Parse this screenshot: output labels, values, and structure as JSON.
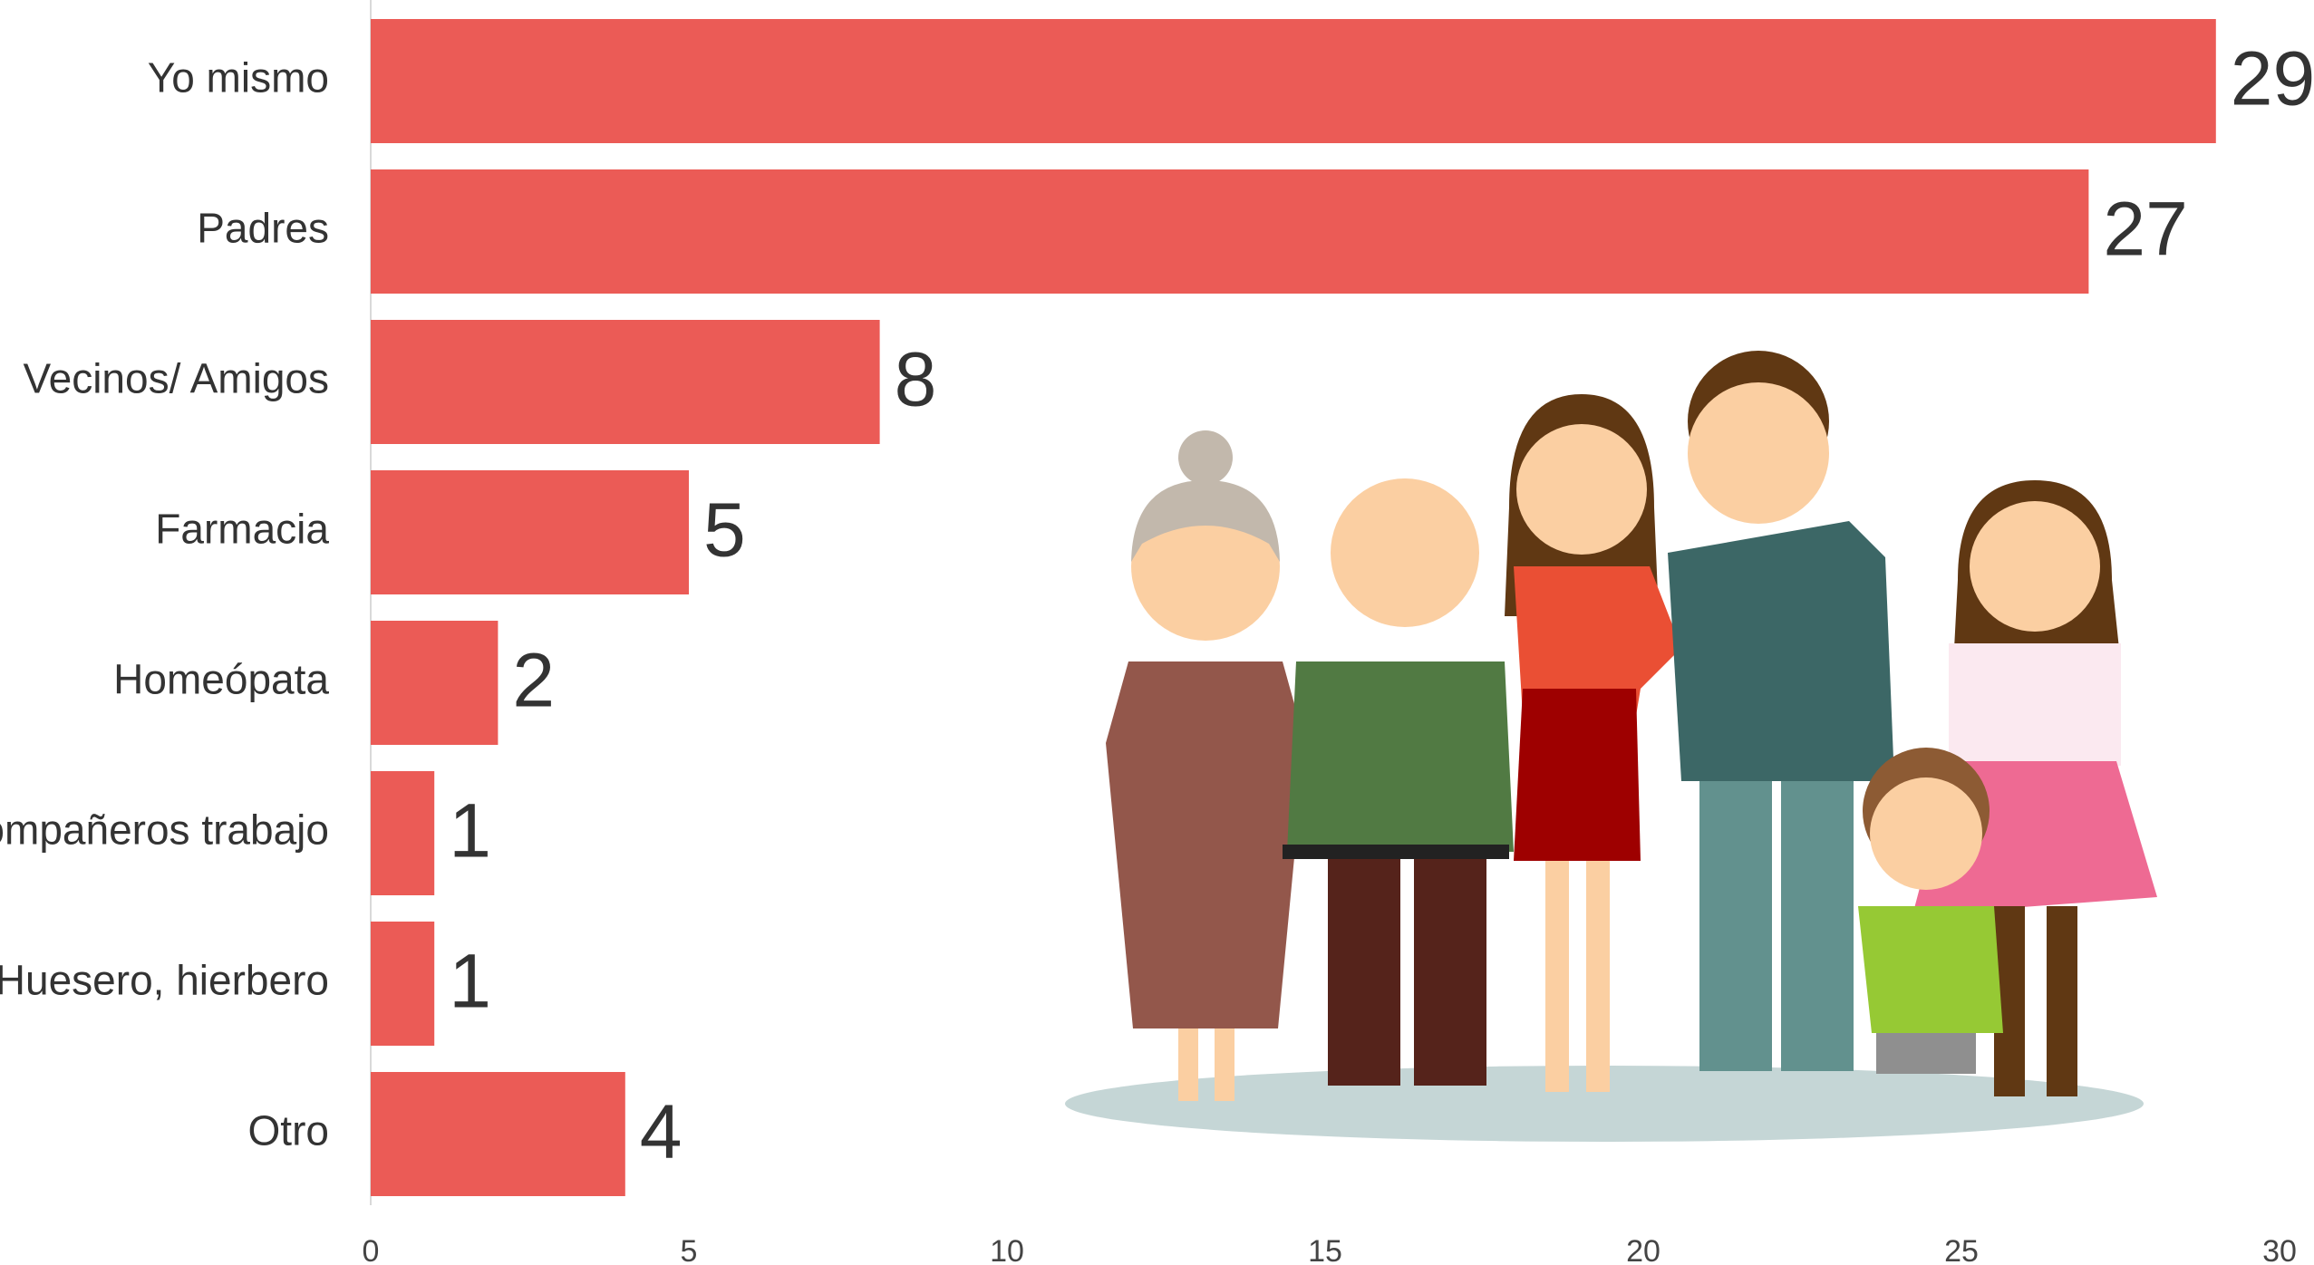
{
  "chart_data": {
    "type": "barh",
    "categories": [
      "Yo mismo",
      "Padres",
      "Vecinos/ Amigos",
      "Farmacia",
      "Homeópata",
      "Compañeros trabajo",
      "Huesero, hierbero",
      "Otro"
    ],
    "values": [
      29,
      27,
      8,
      5,
      2,
      1,
      1,
      4
    ],
    "color": "#eb5b56",
    "xlim": [
      0,
      30
    ],
    "xticks": [
      0,
      5,
      10,
      15,
      20,
      25,
      30
    ],
    "grid": false
  }
}
